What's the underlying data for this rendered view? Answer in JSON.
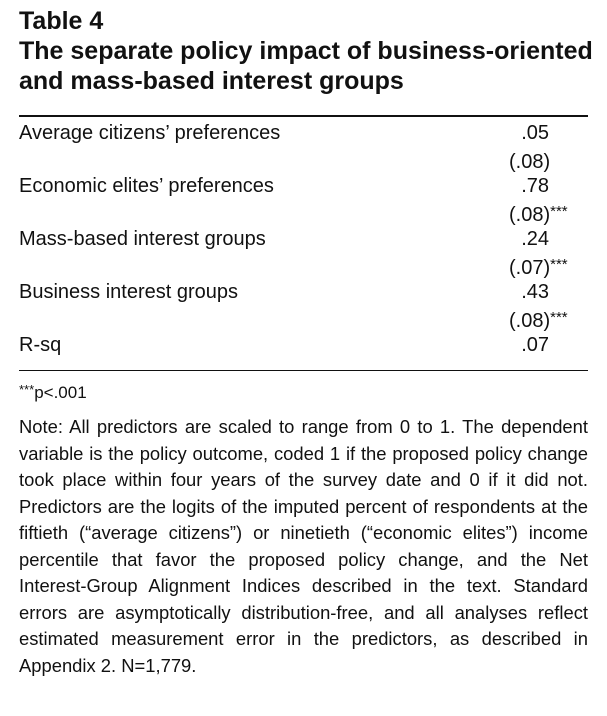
{
  "table": {
    "number": "Table 4",
    "title": "The separate policy impact of business-oriented and mass-based interest groups",
    "rows": [
      {
        "label": "Average citizens’ preferences",
        "coef": ".05",
        "se": "(.08)",
        "stars": ""
      },
      {
        "label": "Economic elites’ preferences",
        "coef": ".78",
        "se": "(.08)",
        "stars": "***"
      },
      {
        "label": "Mass-based interest groups",
        "coef": ".24",
        "se": "(.07)",
        "stars": "***"
      },
      {
        "label": "Business interest groups",
        "coef": ".43",
        "se": "(.08)",
        "stars": "***"
      },
      {
        "label": "R-sq",
        "coef": ".07",
        "se": "",
        "stars": ""
      }
    ],
    "significance": {
      "stars": "***",
      "text": "p<.001"
    },
    "note": "Note: All predictors are scaled to range from 0 to 1. The dependent variable is the policy outcome, coded 1 if the proposed policy change took place within four years of the survey date and 0 if it did not. Predictors are the logits of the imputed percent of respondents at the fiftieth (“average citizens”) or ninetieth (“economic elites”) income percentile that favor the proposed policy change, and the Net Interest-Group Alignment Indices described in the text. Standard errors are asymptotically distribution-free, and all analyses reflect estimated measurement error in the predictors, as described in Appendix 2. N=1,779."
  }
}
